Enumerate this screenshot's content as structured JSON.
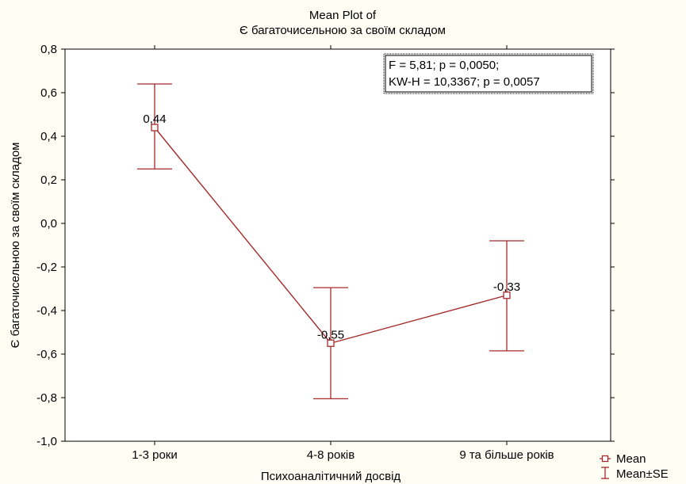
{
  "chart_data": {
    "type": "line",
    "title_line1": "Mean Plot of",
    "title_line2": "Є багаточисельною за своїм складом",
    "xlabel": "Психоаналітичний досвід",
    "ylabel": "Є багаточисельною за своїм складом",
    "categories": [
      "1-3 роки",
      "4-8 років",
      "9 та більше років"
    ],
    "ylim": [
      -1.0,
      0.8
    ],
    "yticks": [
      0.8,
      0.6,
      0.4,
      0.2,
      0.0,
      -0.2,
      -0.4,
      -0.6,
      -0.8,
      -1.0
    ],
    "ytick_labels": [
      "0,8",
      "0,6",
      "0,4",
      "0,2",
      "0,0",
      "-0,2",
      "-0,4",
      "-0,6",
      "-0,8",
      "-1,0"
    ],
    "series": [
      {
        "name": "Mean",
        "values": [
          0.44,
          -0.55,
          -0.33
        ],
        "labels": [
          "0,44",
          "-0,55",
          "-0,33"
        ],
        "se_upper": [
          0.64,
          -0.295,
          -0.08
        ],
        "se_lower": [
          0.25,
          -0.805,
          -0.585
        ]
      }
    ],
    "stats_line1": "F = 5,81; p = 0,0050;",
    "stats_line2": "KW-H = 10,3367; p = 0,0057",
    "legend": {
      "mean": "Mean",
      "se": "Mean±SE",
      "position": "bottom-right"
    },
    "grid": false,
    "series_color": "#a52a2a"
  }
}
